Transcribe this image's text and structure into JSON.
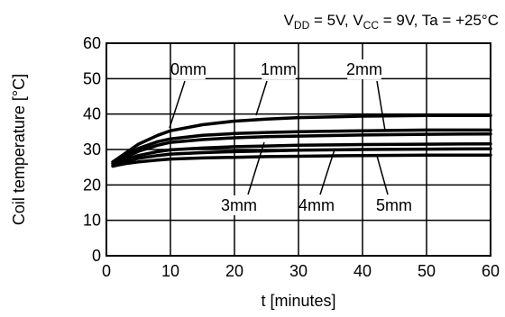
{
  "chart_data": {
    "type": "line",
    "title_parts": {
      "vdd_main": "V",
      "vdd_sub": "DD",
      "vdd_val": " = 5V, ",
      "vcc_main": "V",
      "vcc_sub": "CC",
      "vcc_val": " = 9V, ",
      "ta": "Ta = +25°C"
    },
    "xlabel": "t [minutes]",
    "ylabel": "Coil temperature [°C]",
    "xlim": [
      0,
      60
    ],
    "ylim": [
      0,
      60
    ],
    "xticks": [
      0,
      10,
      20,
      30,
      40,
      50,
      60
    ],
    "yticks": [
      0,
      10,
      20,
      30,
      40,
      50,
      60
    ],
    "grid": true,
    "series": [
      {
        "name": "0mm",
        "x": [
          1,
          3,
          5,
          8,
          10,
          15,
          20,
          25,
          30,
          40,
          50,
          60
        ],
        "y": [
          26.5,
          29,
          31.5,
          34,
          35.3,
          37,
          38,
          38.6,
          39,
          39.4,
          39.6,
          39.6
        ]
      },
      {
        "name": "1mm",
        "x": [
          1,
          3,
          5,
          8,
          10,
          15,
          20,
          25,
          30,
          40,
          50,
          60
        ],
        "y": [
          26.5,
          28.3,
          30.3,
          32.2,
          33,
          34,
          34.5,
          34.8,
          35,
          35.3,
          35.5,
          35.5
        ]
      },
      {
        "name": "2mm",
        "x": [
          1,
          3,
          5,
          8,
          10,
          15,
          20,
          25,
          30,
          40,
          50,
          60
        ],
        "y": [
          26,
          27.7,
          29.5,
          31.2,
          32,
          32.8,
          33.3,
          33.6,
          33.8,
          34.1,
          34.3,
          34.4
        ]
      },
      {
        "name": "3mm",
        "x": [
          1,
          3,
          5,
          8,
          10,
          15,
          20,
          25,
          30,
          40,
          50,
          60
        ],
        "y": [
          26,
          27,
          28.3,
          29.4,
          29.9,
          30.4,
          30.8,
          31,
          31.2,
          31.4,
          31.5,
          31.6
        ]
      },
      {
        "name": "4mm",
        "x": [
          1,
          3,
          5,
          8,
          10,
          15,
          20,
          25,
          30,
          40,
          50,
          60
        ],
        "y": [
          25.5,
          26.6,
          27.5,
          28.3,
          28.7,
          29.1,
          29.4,
          29.6,
          29.8,
          30,
          30.1,
          30.2
        ]
      },
      {
        "name": "5mm",
        "x": [
          1,
          3,
          5,
          8,
          10,
          15,
          20,
          25,
          30,
          40,
          50,
          60
        ],
        "y": [
          25.3,
          26,
          26.5,
          27,
          27.3,
          27.6,
          27.8,
          28,
          28.1,
          28.3,
          28.4,
          28.4
        ]
      }
    ]
  }
}
